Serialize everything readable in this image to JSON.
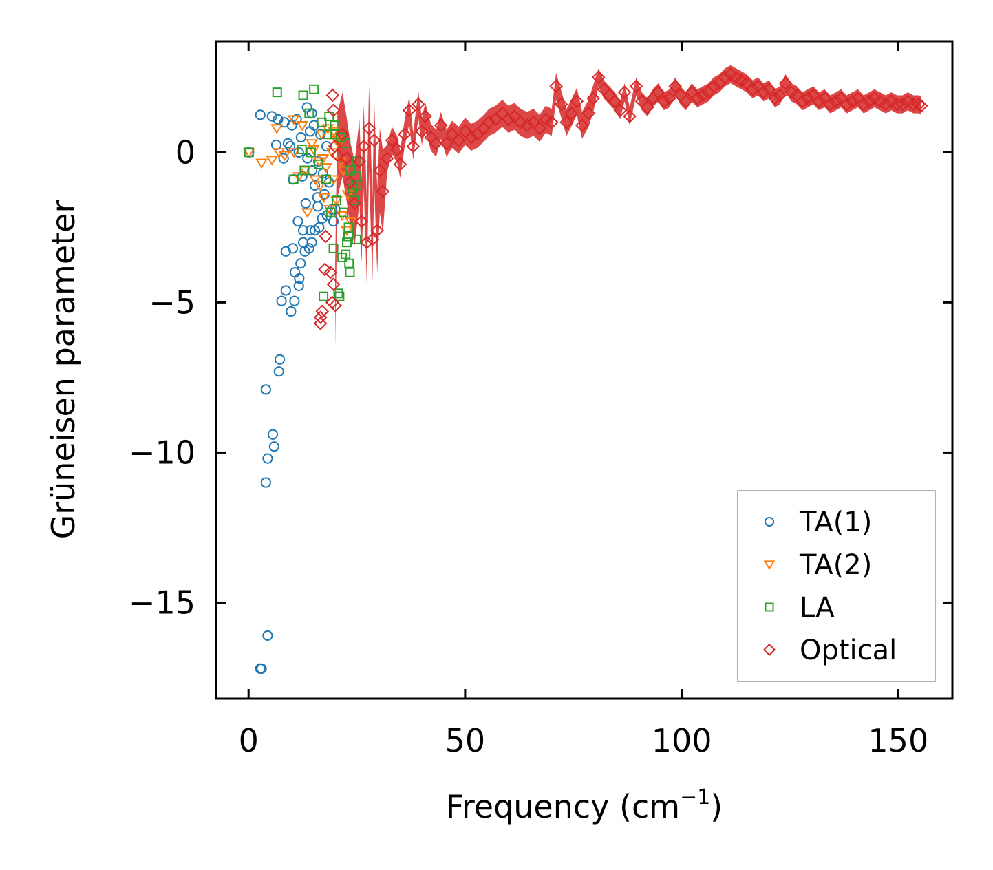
{
  "chart_data": {
    "type": "scatter",
    "title": "",
    "xlabel": "Frequency (cm",
    "xlabel_sup": "−1",
    "xlabel_close": ")",
    "ylabel": "Grüneisen parameter",
    "xlim": [
      -7.5,
      162.5
    ],
    "ylim": [
      -18.2,
      3.7
    ],
    "xticks": [
      0,
      50,
      100,
      150
    ],
    "xtick_labels": [
      "0",
      "50",
      "100",
      "150"
    ],
    "yticks": [
      0,
      -5,
      -10,
      -15
    ],
    "ytick_labels": [
      "0",
      "−5",
      "−10",
      "−15"
    ],
    "legend_position": "lower-right",
    "series": [
      {
        "name": "TA(1)",
        "marker": "circle",
        "color": "#1f77b4",
        "points": [
          [
            0.1,
            0.0
          ],
          [
            2.7,
            -17.2
          ],
          [
            3.0,
            -17.2
          ],
          [
            4.4,
            -16.1
          ],
          [
            4.0,
            -11.0
          ],
          [
            4.4,
            -10.2
          ],
          [
            5.9,
            -9.8
          ],
          [
            5.6,
            -9.4
          ],
          [
            4.0,
            -7.9
          ],
          [
            7.0,
            -7.3
          ],
          [
            7.2,
            -6.9
          ],
          [
            9.8,
            -5.3
          ],
          [
            7.6,
            -4.95
          ],
          [
            10.6,
            -4.95
          ],
          [
            8.6,
            -4.6
          ],
          [
            11.6,
            -4.45
          ],
          [
            10.7,
            -4.0
          ],
          [
            11.7,
            -4.2
          ],
          [
            12.0,
            -3.7
          ],
          [
            8.6,
            -3.3
          ],
          [
            10.2,
            -3.2
          ],
          [
            13.0,
            -3.3
          ],
          [
            14.0,
            -3.2
          ],
          [
            15.3,
            -2.6
          ],
          [
            11.4,
            -2.3
          ],
          [
            12.6,
            -2.6
          ],
          [
            14.3,
            -2.6
          ],
          [
            16.3,
            -2.5
          ],
          [
            17.0,
            -2.2
          ],
          [
            18.1,
            -2.1
          ],
          [
            19.3,
            -1.9
          ],
          [
            20.0,
            -1.9
          ],
          [
            16.0,
            -1.8
          ],
          [
            17.5,
            -1.4
          ],
          [
            15.3,
            -1.1
          ],
          [
            18.0,
            -0.9
          ],
          [
            10.3,
            -0.9
          ],
          [
            12.4,
            -0.8
          ],
          [
            14.7,
            -0.6
          ],
          [
            16.1,
            -0.3
          ],
          [
            13.6,
            -0.2
          ],
          [
            11.6,
            0.0
          ],
          [
            8.1,
            -0.2
          ],
          [
            9.6,
            0.2
          ],
          [
            12.1,
            0.5
          ],
          [
            14.2,
            0.7
          ],
          [
            15.1,
            0.9
          ],
          [
            16.6,
            0.6
          ],
          [
            18.0,
            0.2
          ],
          [
            6.8,
            1.1
          ],
          [
            8.3,
            1.0
          ],
          [
            10.0,
            0.9
          ],
          [
            5.4,
            1.2
          ],
          [
            2.7,
            1.25
          ],
          [
            13.5,
            1.5
          ],
          [
            14.6,
            1.3
          ],
          [
            9.1,
            0.3
          ],
          [
            12.6,
            -3.0
          ],
          [
            14.6,
            -3.0
          ],
          [
            15.9,
            -1.5
          ],
          [
            17.2,
            -0.7
          ],
          [
            18.6,
            -1.0
          ],
          [
            19.6,
            -2.3
          ],
          [
            13.2,
            -1.7
          ],
          [
            11.1,
            1.1
          ],
          [
            6.4,
            0.25
          ]
        ]
      },
      {
        "name": "TA(2)",
        "marker": "triangle",
        "color": "#ff7f0e",
        "points": [
          [
            0.1,
            0.0
          ],
          [
            3.0,
            -0.35
          ],
          [
            5.4,
            -0.25
          ],
          [
            7.0,
            0.0
          ],
          [
            10.5,
            0.0
          ],
          [
            8.3,
            -0.1
          ],
          [
            6.5,
            0.8
          ],
          [
            10.4,
            1.1
          ],
          [
            12.4,
            0.9
          ],
          [
            14.6,
            0.3
          ],
          [
            16.3,
            -0.3
          ],
          [
            13.1,
            -0.6
          ],
          [
            15.4,
            -0.9
          ],
          [
            17.9,
            -0.5
          ],
          [
            19.3,
            0.0
          ],
          [
            20.3,
            0.4
          ],
          [
            21.3,
            -0.3
          ],
          [
            17.4,
            -1.5
          ],
          [
            18.7,
            -1.9
          ],
          [
            20.3,
            -1.6
          ],
          [
            21.6,
            -2.1
          ],
          [
            22.7,
            -2.6
          ],
          [
            13.6,
            -2.0
          ],
          [
            16.5,
            -1.1
          ],
          [
            19.6,
            -0.9
          ],
          [
            20.9,
            0.3
          ],
          [
            18.3,
            0.8
          ],
          [
            19.7,
            0.7
          ],
          [
            17.2,
            -0.2
          ],
          [
            15.0,
            0.1
          ],
          [
            22.9,
            -1.4
          ],
          [
            23.6,
            -2.3
          ],
          [
            11.6,
            -0.8
          ],
          [
            21.9,
            -0.6
          ],
          [
            16.9,
            0.6
          ]
        ]
      },
      {
        "name": "LA",
        "marker": "square",
        "color": "#2ca02c",
        "points": [
          [
            0.1,
            0.0
          ],
          [
            6.6,
            2.0
          ],
          [
            12.6,
            1.9
          ],
          [
            15.1,
            2.1
          ],
          [
            14.0,
            1.3
          ],
          [
            18.6,
            1.2
          ],
          [
            16.9,
            1.0
          ],
          [
            18.2,
            0.6
          ],
          [
            19.9,
            0.9
          ],
          [
            21.2,
            0.5
          ],
          [
            22.4,
            0.3
          ],
          [
            10.4,
            -0.9
          ],
          [
            12.9,
            -0.6
          ],
          [
            17.9,
            -0.9
          ],
          [
            20.3,
            -1.6
          ],
          [
            21.9,
            -2.0
          ],
          [
            23.1,
            -2.5
          ],
          [
            24.3,
            -1.6
          ],
          [
            25.0,
            -1.1
          ],
          [
            24.7,
            -0.8
          ],
          [
            23.5,
            -0.6
          ],
          [
            22.7,
            -3.0
          ],
          [
            23.0,
            -2.8
          ],
          [
            19.6,
            -3.2
          ],
          [
            21.6,
            -3.5
          ],
          [
            23.2,
            -3.7
          ],
          [
            23.4,
            -4.0
          ],
          [
            20.7,
            -4.7
          ],
          [
            21.0,
            -4.8
          ],
          [
            17.3,
            -4.8
          ],
          [
            24.9,
            -2.9
          ],
          [
            25.0,
            -0.3
          ],
          [
            14.4,
            0.0
          ],
          [
            16.2,
            -0.4
          ],
          [
            12.3,
            0.1
          ],
          [
            22.4,
            -3.4
          ],
          [
            19.0,
            -2.0
          ],
          [
            24.0,
            -1.2
          ],
          [
            20.0,
            0.6
          ]
        ]
      },
      {
        "name": "Optical",
        "marker": "diamond",
        "color": "#d62728",
        "points": [
          [
            19.4,
            1.9
          ],
          [
            19.6,
            1.4
          ],
          [
            16.6,
            -5.7
          ],
          [
            16.6,
            -5.5
          ],
          [
            17.0,
            -5.3
          ],
          [
            19.3,
            -5.0
          ],
          [
            20.0,
            -5.1
          ],
          [
            19.6,
            -4.4
          ],
          [
            17.6,
            -3.9
          ],
          [
            18.9,
            -4.0
          ],
          [
            17.8,
            -2.8
          ],
          [
            19.9,
            0.2
          ],
          [
            20.5,
            -0.1
          ],
          [
            21.7,
            0.6
          ],
          [
            22.6,
            -0.2
          ],
          [
            23.4,
            -1.0
          ],
          [
            24.5,
            -1.7
          ],
          [
            26.1,
            -2.3
          ],
          [
            27.3,
            -3.0
          ],
          [
            28.6,
            -2.9
          ],
          [
            29.7,
            -2.6
          ],
          [
            25.6,
            -0.3
          ],
          [
            26.6,
            0.2
          ],
          [
            27.8,
            0.8
          ],
          [
            29.0,
            0.4
          ],
          [
            30.3,
            -0.6
          ],
          [
            31.0,
            -1.3
          ],
          [
            32.0,
            -0.2
          ],
          [
            33.1,
            0.4
          ],
          [
            34.3,
            0.1
          ],
          [
            35.0,
            -0.4
          ],
          [
            36.0,
            0.6
          ],
          [
            37.1,
            1.4
          ],
          [
            38.0,
            0.2
          ],
          [
            39.2,
            1.6
          ],
          [
            40.0,
            0.7
          ],
          [
            40.8,
            1.2
          ],
          [
            42.1,
            0.5
          ],
          [
            43.3,
            0.3
          ],
          [
            44.4,
            0.9
          ],
          [
            45.7,
            0.3
          ],
          [
            47.0,
            0.6
          ],
          [
            48.5,
            0.4
          ],
          [
            50.0,
            0.7
          ],
          [
            51.4,
            0.5
          ],
          [
            52.8,
            0.6
          ],
          [
            54.3,
            0.8
          ],
          [
            55.5,
            1.0
          ],
          [
            57.0,
            1.1
          ],
          [
            58.6,
            1.3
          ],
          [
            60.0,
            1.1
          ],
          [
            61.4,
            1.2
          ],
          [
            62.8,
            1.0
          ],
          [
            64.3,
            0.9
          ],
          [
            65.8,
            1.0
          ],
          [
            67.2,
            0.8
          ],
          [
            68.6,
            1.1
          ],
          [
            70.0,
            1.0
          ],
          [
            71.0,
            2.2
          ],
          [
            72.2,
            1.6
          ],
          [
            73.4,
            1.0
          ],
          [
            74.5,
            1.3
          ],
          [
            75.8,
            1.7
          ],
          [
            77.0,
            0.9
          ],
          [
            78.5,
            1.3
          ],
          [
            79.6,
            1.8
          ],
          [
            80.8,
            2.5
          ],
          [
            82.0,
            2.1
          ],
          [
            83.3,
            1.9
          ],
          [
            84.6,
            1.7
          ],
          [
            85.8,
            1.4
          ],
          [
            86.8,
            2.0
          ],
          [
            88.0,
            1.2
          ],
          [
            89.5,
            2.2
          ],
          [
            90.8,
            1.7
          ],
          [
            92.1,
            1.5
          ],
          [
            93.3,
            1.8
          ],
          [
            94.6,
            2.0
          ],
          [
            95.9,
            1.7
          ],
          [
            97.2,
            1.8
          ],
          [
            98.5,
            2.2
          ],
          [
            99.7,
            1.9
          ],
          [
            101.0,
            1.7
          ],
          [
            102.3,
            2.0
          ],
          [
            103.6,
            1.8
          ],
          [
            104.9,
            1.9
          ],
          [
            106.2,
            2.0
          ],
          [
            107.4,
            2.2
          ],
          [
            108.7,
            2.3
          ],
          [
            110.0,
            2.5
          ],
          [
            111.3,
            2.6
          ],
          [
            112.5,
            2.5
          ],
          [
            113.8,
            2.4
          ],
          [
            115.0,
            2.3
          ],
          [
            116.4,
            2.1
          ],
          [
            117.6,
            2.2
          ],
          [
            118.9,
            2.0
          ],
          [
            120.2,
            2.1
          ],
          [
            121.5,
            1.8
          ],
          [
            122.7,
            1.9
          ],
          [
            124.0,
            2.3
          ],
          [
            125.3,
            2.0
          ],
          [
            126.6,
            1.9
          ],
          [
            127.9,
            1.7
          ],
          [
            129.1,
            1.8
          ],
          [
            130.4,
            1.9
          ],
          [
            131.7,
            1.7
          ],
          [
            133.0,
            1.8
          ],
          [
            134.3,
            1.6
          ],
          [
            135.6,
            1.7
          ],
          [
            136.8,
            1.8
          ],
          [
            138.1,
            1.6
          ],
          [
            139.4,
            1.7
          ],
          [
            140.7,
            1.8
          ],
          [
            142.0,
            1.6
          ],
          [
            143.3,
            1.7
          ],
          [
            144.5,
            1.8
          ],
          [
            145.8,
            1.7
          ],
          [
            147.1,
            1.6
          ],
          [
            148.4,
            1.7
          ],
          [
            149.7,
            1.6
          ],
          [
            151.0,
            1.6
          ],
          [
            152.2,
            1.7
          ],
          [
            153.5,
            1.6
          ],
          [
            154.8,
            1.6
          ],
          [
            155.3,
            1.55
          ]
        ]
      }
    ]
  }
}
